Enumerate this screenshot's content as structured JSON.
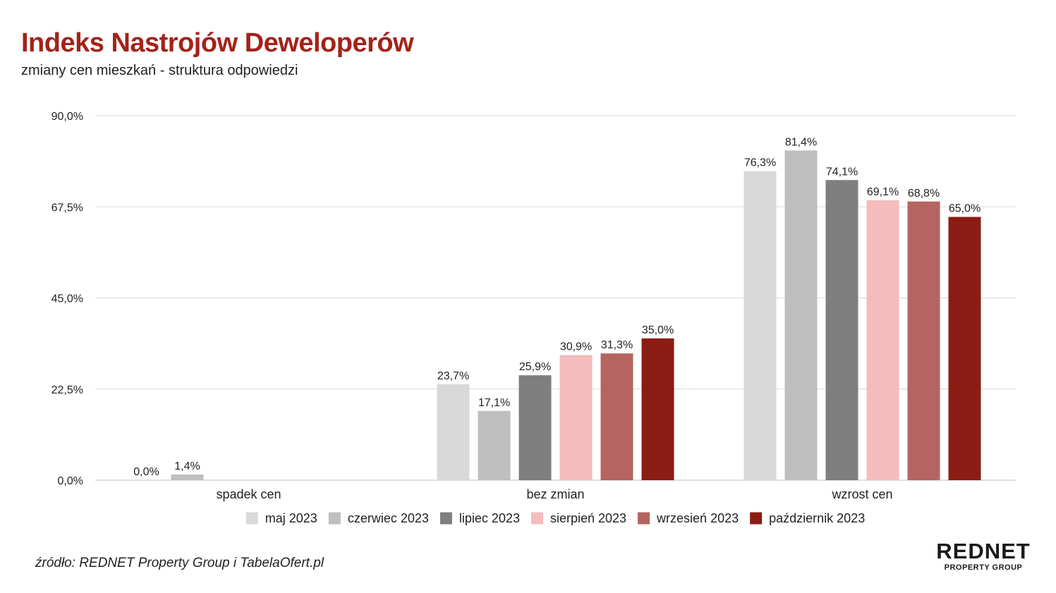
{
  "header": {
    "title": "Indeks Nastrojów Deweloperów",
    "subtitle": "zmiany cen mieszkań - struktura odpowiedzi"
  },
  "footer": {
    "source": "źródło: REDNET Property Group i TabelaOfert.pl",
    "logo_main": "REDNET",
    "logo_sub": "PROPERTY GROUP"
  },
  "chart_data": {
    "type": "bar",
    "categories": [
      "spadek cen",
      "bez zmian",
      "wzrost cen"
    ],
    "series": [
      {
        "name": "maj 2023",
        "values": [
          0.0,
          23.7,
          76.3
        ],
        "labels": [
          "0,0%",
          "23,7%",
          "76,3%"
        ],
        "color": "#d9d9d9"
      },
      {
        "name": "czerwiec 2023",
        "values": [
          1.4,
          17.1,
          81.4
        ],
        "labels": [
          "1,4%",
          "17,1%",
          "81,4%"
        ],
        "color": "#bfbfbf"
      },
      {
        "name": "lipiec 2023",
        "values": [
          null,
          25.9,
          74.1
        ],
        "labels": [
          "",
          "25,9%",
          "74,1%"
        ],
        "color": "#7f7f7f"
      },
      {
        "name": "sierpień 2023",
        "values": [
          null,
          30.9,
          69.1
        ],
        "labels": [
          "",
          "30,9%",
          "69,1%"
        ],
        "color": "#f4bcbc"
      },
      {
        "name": "wrzesień 2023",
        "values": [
          null,
          31.3,
          68.8
        ],
        "labels": [
          "",
          "31,3%",
          "68,8%"
        ],
        "color": "#b56461"
      },
      {
        "name": "październik 2023",
        "values": [
          null,
          35.0,
          65.0
        ],
        "labels": [
          "",
          "35,0%",
          "65,0%"
        ],
        "color": "#8b1c14"
      }
    ],
    "y_ticks": [
      0,
      22.5,
      45,
      67.5,
      90
    ],
    "y_tick_labels": [
      "0,0%",
      "22,5%",
      "45,0%",
      "67,5%",
      "90,0%"
    ],
    "ylim": [
      0,
      90
    ],
    "grid": true,
    "legend_position": "bottom"
  }
}
